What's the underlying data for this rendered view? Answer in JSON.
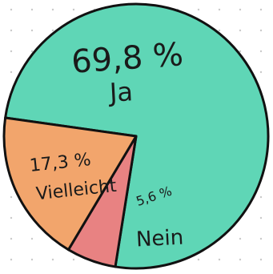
{
  "chart_data": {
    "type": "pie",
    "title": "",
    "slices": [
      {
        "label": "Ja",
        "value": 69.8,
        "value_text": "69,8 %",
        "color": "#5fd6b6"
      },
      {
        "label": "Nein",
        "value": 5.6,
        "value_text": "5,6 %",
        "color": "#e88282"
      },
      {
        "label": "Vielleicht",
        "value": 17.3,
        "value_text": "17,3 %",
        "color": "#f2a56c"
      }
    ],
    "legend": "none",
    "background": "dotted paper"
  }
}
